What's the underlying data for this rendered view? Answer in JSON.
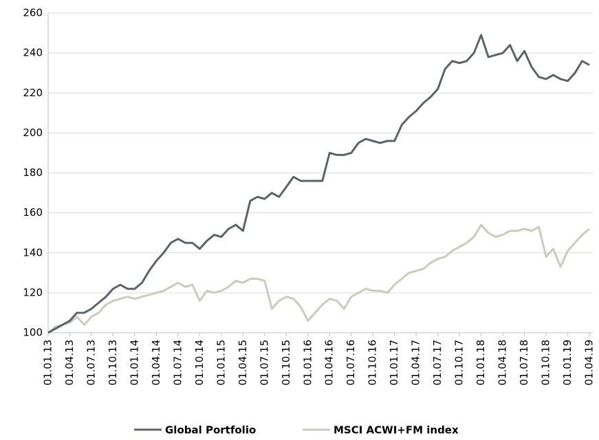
{
  "chart_data": {
    "type": "line",
    "x": [
      "01.01.13",
      "01.02.13",
      "01.03.13",
      "01.04.13",
      "01.05.13",
      "01.06.13",
      "01.07.13",
      "01.08.13",
      "01.09.13",
      "01.10.13",
      "01.11.13",
      "01.12.13",
      "01.01.14",
      "01.02.14",
      "01.03.14",
      "01.04.14",
      "01.05.14",
      "01.06.14",
      "01.07.14",
      "01.08.14",
      "01.09.14",
      "01.10.14",
      "01.11.14",
      "01.12.14",
      "01.01.15",
      "01.02.15",
      "01.03.15",
      "01.04.15",
      "01.05.15",
      "01.06.15",
      "01.07.15",
      "01.08.15",
      "01.09.15",
      "01.10.15",
      "01.11.15",
      "01.12.15",
      "01.01.16",
      "01.02.16",
      "01.03.16",
      "01.04.16",
      "01.05.16",
      "01.06.16",
      "01.07.16",
      "01.08.16",
      "01.09.16",
      "01.10.16",
      "01.11.16",
      "01.12.16",
      "01.01.17",
      "01.02.17",
      "01.03.17",
      "01.04.17",
      "01.05.17",
      "01.06.17",
      "01.07.17",
      "01.08.17",
      "01.09.17",
      "01.10.17",
      "01.11.17",
      "01.12.17",
      "01.01.18",
      "01.02.18",
      "01.03.18",
      "01.04.18",
      "01.05.18",
      "01.06.18",
      "01.07.18",
      "01.08.18",
      "01.09.18",
      "01.10.18",
      "01.11.18",
      "01.12.18",
      "01.01.19",
      "01.02.19",
      "01.03.19",
      "01.04.19"
    ],
    "series": [
      {
        "name": "Global Portfolio",
        "color": "#5a6468",
        "values": [
          100,
          102,
          104,
          106,
          110,
          110,
          112,
          115,
          118,
          122,
          124,
          122,
          122,
          125,
          131,
          136,
          140,
          145,
          147,
          145,
          145,
          142,
          146,
          149,
          148,
          152,
          154,
          151,
          166,
          168,
          167,
          170,
          168,
          173,
          178,
          176,
          176,
          176,
          176,
          190,
          189,
          189,
          190,
          195,
          197,
          196,
          195,
          196,
          196,
          204,
          208,
          211,
          215,
          218,
          222,
          232,
          236,
          235,
          236,
          240,
          249,
          238,
          239,
          240,
          244,
          236,
          241,
          233,
          228,
          227,
          229,
          227,
          226,
          230,
          236,
          234
        ]
      },
      {
        "name": "MSCI ACWI+FM index",
        "color": "#c9cbbd",
        "values": [
          100,
          103,
          104,
          105,
          108,
          104,
          108,
          110,
          114,
          116,
          117,
          118,
          117,
          118,
          119,
          120,
          121,
          123,
          125,
          123,
          124,
          116,
          121,
          120,
          121,
          123,
          126,
          125,
          127,
          127,
          126,
          112,
          116,
          118,
          117,
          113,
          106,
          110,
          114,
          117,
          116,
          112,
          118,
          120,
          122,
          121,
          121,
          120,
          124,
          127,
          130,
          131,
          132,
          135,
          137,
          138,
          141,
          143,
          145,
          148,
          154,
          150,
          148,
          149,
          151,
          151,
          152,
          151,
          153,
          138,
          142,
          133,
          141,
          145,
          149,
          152
        ]
      }
    ],
    "ylim": [
      100,
      260
    ],
    "yticks": [
      100,
      120,
      140,
      160,
      180,
      200,
      220,
      240,
      260
    ],
    "grid": true
  }
}
